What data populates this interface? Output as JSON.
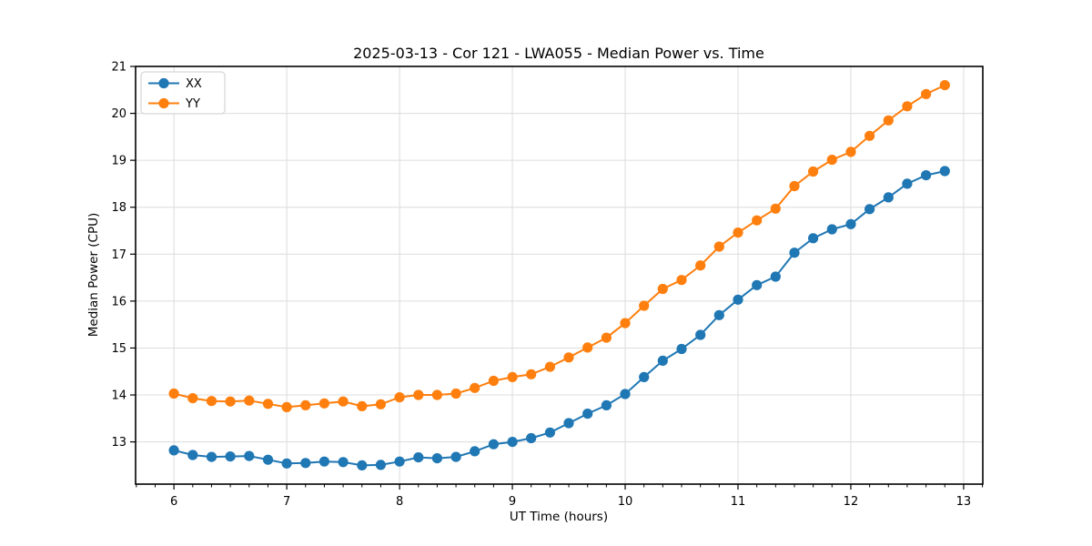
{
  "chart_data": {
    "type": "line",
    "title": "2025-03-13 - Cor 121 - LWA055 - Median Power vs. Time",
    "xlabel": "UT Time (hours)",
    "ylabel": "Median Power (CPU)",
    "xlim": [
      5.66,
      13.17
    ],
    "ylim": [
      12.1,
      21.0
    ],
    "xticks": [
      6,
      7,
      8,
      9,
      10,
      11,
      12,
      13
    ],
    "yticks": [
      13,
      14,
      15,
      16,
      17,
      18,
      19,
      20,
      21
    ],
    "x_minor_step_hours": 0.16667,
    "grid": true,
    "legend_position": "upper left",
    "background_color": "#ffffff",
    "grid_color": "#dcdcdc",
    "spine_color": "#000000",
    "marker": "circle",
    "x": [
      6.0,
      6.1667,
      6.3333,
      6.5,
      6.6667,
      6.8333,
      7.0,
      7.1667,
      7.3333,
      7.5,
      7.6667,
      7.8333,
      8.0,
      8.1667,
      8.3333,
      8.5,
      8.6667,
      8.8333,
      9.0,
      9.1667,
      9.3333,
      9.5,
      9.6667,
      9.8333,
      10.0,
      10.1667,
      10.3333,
      10.5,
      10.6667,
      10.8333,
      11.0,
      11.1667,
      11.3333,
      11.5,
      11.6667,
      11.8333,
      12.0,
      12.1667,
      12.3333,
      12.5,
      12.6667,
      12.8333
    ],
    "series": [
      {
        "name": "XX",
        "color": "#1f77b4",
        "values": [
          12.82,
          12.72,
          12.68,
          12.69,
          12.7,
          12.62,
          12.54,
          12.55,
          12.58,
          12.57,
          12.5,
          12.51,
          12.58,
          12.67,
          12.65,
          12.68,
          12.8,
          12.95,
          13.0,
          13.08,
          13.2,
          13.4,
          13.6,
          13.78,
          14.02,
          14.38,
          14.73,
          14.98,
          15.28,
          15.7,
          16.03,
          16.34,
          16.52,
          17.03,
          17.34,
          17.53,
          17.64,
          17.96,
          18.21,
          18.5,
          18.68,
          18.77
        ]
      },
      {
        "name": "YY",
        "color": "#ff7f0e",
        "values": [
          14.03,
          13.93,
          13.87,
          13.86,
          13.88,
          13.81,
          13.74,
          13.78,
          13.82,
          13.86,
          13.76,
          13.8,
          13.95,
          14.0,
          14.0,
          14.03,
          14.15,
          14.3,
          14.38,
          14.44,
          14.6,
          14.8,
          15.01,
          15.22,
          15.53,
          15.9,
          16.26,
          16.45,
          16.76,
          17.16,
          17.46,
          17.72,
          17.97,
          18.45,
          18.76,
          19.01,
          19.18,
          19.52,
          19.85,
          20.15,
          20.41,
          20.6
        ]
      }
    ]
  }
}
